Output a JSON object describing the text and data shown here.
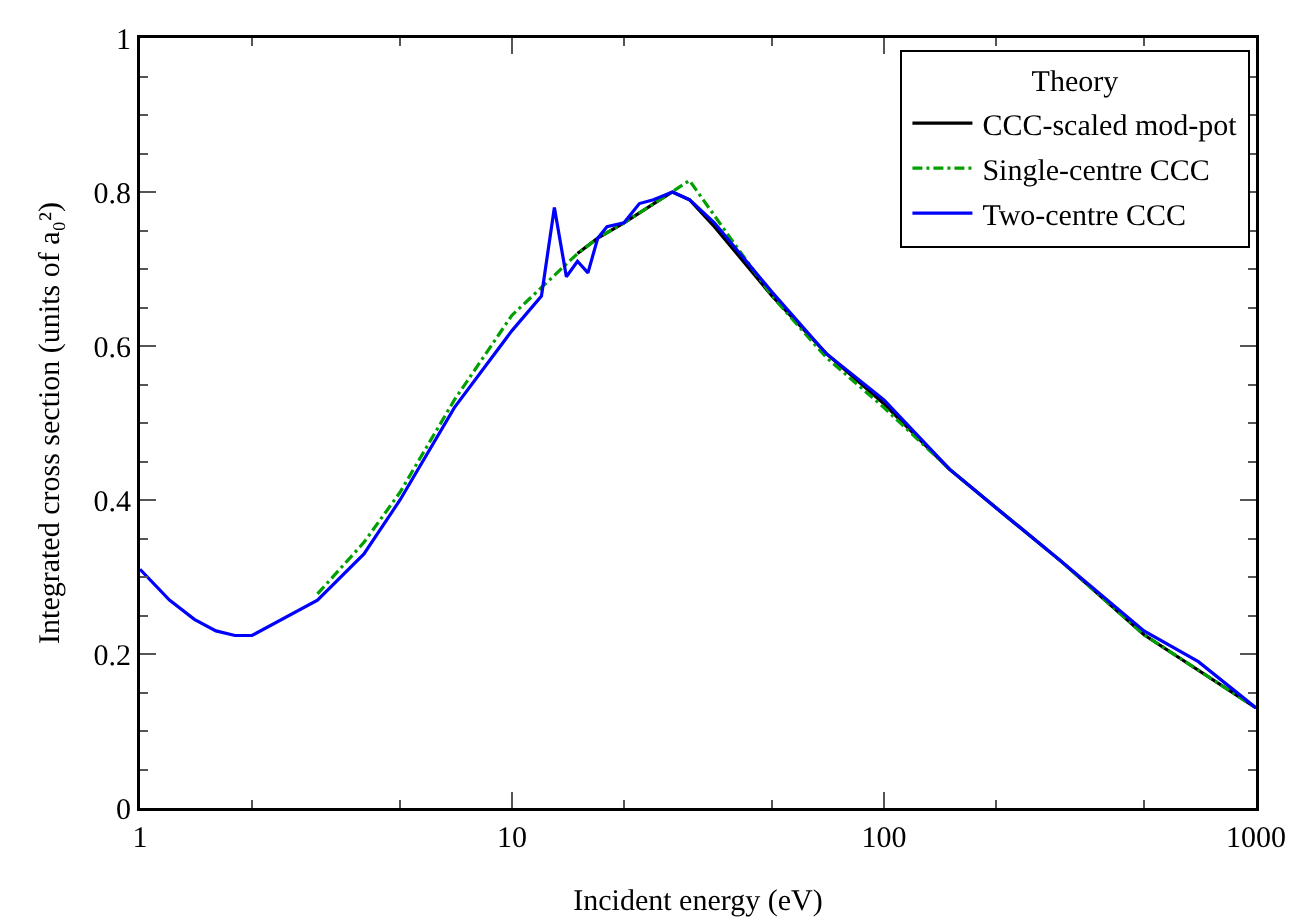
{
  "chart_data": {
    "type": "line",
    "xlabel": "Incident energy (eV)",
    "ylabel": "Integrated cross section (units of a₀²)",
    "legend_title": "Theory",
    "legend": "top right",
    "log": "x",
    "grid": false,
    "xlim": [
      1,
      1000
    ],
    "xticks": [
      1,
      10,
      100,
      1000
    ],
    "ylim": [
      0,
      1
    ],
    "yticks": [
      0,
      0.2,
      0.4,
      0.6,
      0.8,
      1
    ],
    "series": [
      {
        "name": "CCC-scaled mod-pot",
        "color": "#000000",
        "line_style": "solid",
        "x": [
          15,
          17,
          20,
          25,
          27,
          30,
          35,
          50,
          70,
          100,
          150,
          200,
          300,
          500,
          1000
        ],
        "values": [
          0.72,
          0.74,
          0.76,
          0.79,
          0.8,
          0.79,
          0.755,
          0.665,
          0.59,
          0.525,
          0.44,
          0.39,
          0.32,
          0.225,
          0.13
        ]
      },
      {
        "name": "Single-centre CCC",
        "color": "#00a000",
        "line_style": "dashdot",
        "x": [
          3,
          4,
          5,
          7,
          10,
          15,
          17,
          20,
          25,
          30,
          40,
          50,
          70,
          100,
          150,
          200,
          300,
          500,
          1000
        ],
        "values": [
          0.278,
          0.345,
          0.41,
          0.53,
          0.64,
          0.72,
          0.74,
          0.76,
          0.79,
          0.815,
          0.73,
          0.665,
          0.585,
          0.52,
          0.44,
          0.39,
          0.32,
          0.225,
          0.13
        ]
      },
      {
        "name": "Two-centre CCC",
        "color": "#0000ff",
        "line_style": "solid",
        "x": [
          1,
          1.2,
          1.4,
          1.6,
          1.8,
          2,
          3,
          4,
          5,
          7,
          10,
          12,
          13,
          14,
          15,
          16,
          17,
          18,
          20,
          22,
          24,
          27,
          30,
          35,
          50,
          70,
          100,
          150,
          200,
          300,
          500,
          700,
          1000
        ],
        "values": [
          0.31,
          0.27,
          0.245,
          0.23,
          0.224,
          0.224,
          0.27,
          0.33,
          0.4,
          0.52,
          0.62,
          0.665,
          0.78,
          0.69,
          0.71,
          0.695,
          0.74,
          0.755,
          0.76,
          0.785,
          0.79,
          0.8,
          0.79,
          0.76,
          0.67,
          0.59,
          0.53,
          0.44,
          0.39,
          0.32,
          0.23,
          0.19,
          0.13
        ]
      }
    ]
  }
}
